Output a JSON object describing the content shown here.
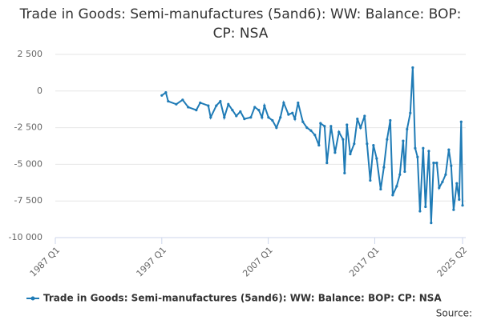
{
  "chart_data": {
    "type": "line",
    "title": "Trade in Goods: Semi-manufactures (5and6): WW: Balance: BOP: CP: NSA",
    "source": "Source:",
    "xlim": [
      1987,
      2025.25
    ],
    "xticks": [
      {
        "value": 1987,
        "label": "1987 Q1"
      },
      {
        "value": 1997,
        "label": "1997 Q1"
      },
      {
        "value": 2007,
        "label": "2007 Q1"
      },
      {
        "value": 2017,
        "label": "2017 Q1"
      },
      {
        "value": 2025.25,
        "label": "2025 Q2"
      }
    ],
    "ylim": [
      -10000,
      2500
    ],
    "yticks": [
      {
        "value": -10000,
        "label": "-10 000"
      },
      {
        "value": -7500,
        "label": "-7 500"
      },
      {
        "value": -5000,
        "label": "-5 000"
      },
      {
        "value": -2500,
        "label": "-2 500"
      },
      0,
      {
        "value": 2500,
        "label": "2 500"
      }
    ],
    "grid": true,
    "legend": "bottom",
    "x": [
      1997.0,
      1997.38,
      1997.6,
      1998.36,
      1998.96,
      1999.48,
      2000.24,
      2000.61,
      2001.37,
      2001.59,
      2002.12,
      2002.5,
      2002.87,
      2003.25,
      2003.63,
      2004.0,
      2004.38,
      2004.76,
      2005.36,
      2005.73,
      2006.11,
      2006.41,
      2006.64,
      2007.02,
      2007.39,
      2007.77,
      2008.14,
      2008.45,
      2008.9,
      2009.27,
      2009.5,
      2009.8,
      2010.25,
      2010.63,
      2011.01,
      2011.38,
      2011.76,
      2011.91,
      2012.29,
      2012.51,
      2012.89,
      2013.27,
      2013.64,
      2014.02,
      2014.17,
      2014.39,
      2014.7,
      2015.07,
      2015.37,
      2015.67,
      2016.05,
      2016.28,
      2016.58,
      2016.88,
      2017.18,
      2017.56,
      2017.86,
      2018.16,
      2018.46,
      2018.69,
      2019.06,
      2019.36,
      2019.67,
      2019.82,
      2020.04,
      2020.34,
      2020.57,
      2020.8,
      2021.02,
      2021.25,
      2021.55,
      2021.77,
      2022.08,
      2022.3,
      2022.53,
      2022.83,
      2023.05,
      2023.36,
      2023.66,
      2023.96,
      2024.18,
      2024.41,
      2024.71,
      2024.93,
      2025.12,
      2025.25
    ],
    "series": [
      {
        "name": "Trade in Goods: Semi-manufactures (5and6): WW: Balance: BOP: CP: NSA",
        "color": "#1f7bb6",
        "values": [
          -300,
          -100,
          -700,
          -900,
          -600,
          -1100,
          -1300,
          -800,
          -1000,
          -1800,
          -1000,
          -700,
          -1800,
          -900,
          -1300,
          -1700,
          -1400,
          -1900,
          -1800,
          -1100,
          -1300,
          -1800,
          -1000,
          -1800,
          -2000,
          -2500,
          -1800,
          -800,
          -1600,
          -1500,
          -1900,
          -800,
          -2100,
          -2500,
          -2700,
          -3000,
          -3700,
          -2200,
          -2400,
          -4900,
          -2400,
          -4200,
          -2800,
          -3300,
          -5600,
          -2300,
          -4300,
          -3600,
          -1900,
          -2500,
          -1700,
          -3600,
          -6100,
          -3700,
          -4600,
          -6700,
          -5200,
          -3300,
          -2000,
          -7100,
          -6500,
          -5700,
          -3400,
          -5500,
          -2600,
          -1500,
          1600,
          -3900,
          -4500,
          -8200,
          -3900,
          -7900,
          -4100,
          -9000,
          -4900,
          -4900,
          -6600,
          -6200,
          -5700,
          -4000,
          -5100,
          -8100,
          -6300,
          -7400,
          -2100,
          -7800
        ]
      }
    ]
  }
}
